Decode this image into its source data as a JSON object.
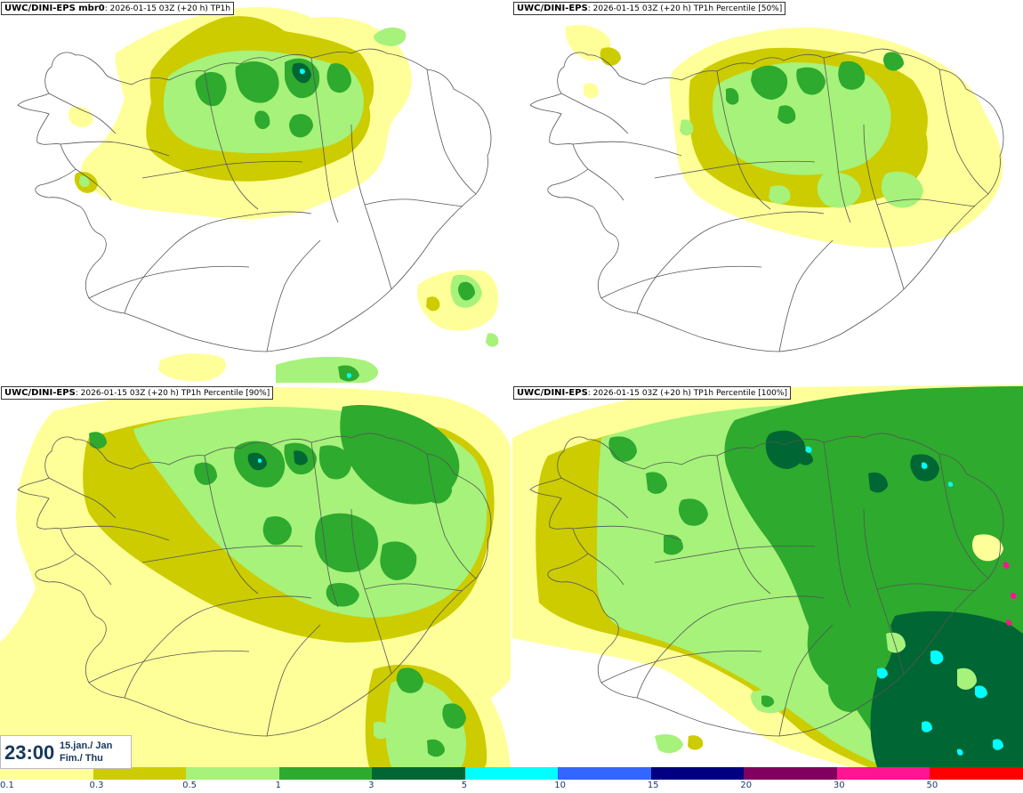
{
  "panels": [
    {
      "model": "UWC/DINI-EPS mbr0",
      "info": ": 2026-01-15 03Z (+20 h) TP1h"
    },
    {
      "model": "UWC/DINI-EPS",
      "info": ": 2026-01-15 03Z (+20 h) TP1h Percentile [50%]"
    },
    {
      "model": "UWC/DINI-EPS",
      "info": ": 2026-01-15 03Z (+20 h) TP1h Percentile [90%]"
    },
    {
      "model": "UWC/DINI-EPS",
      "info": ": 2026-01-15 03Z (+20 h) TP1h Percentile [100%]"
    }
  ],
  "time": {
    "hour": "23:00",
    "date_line1": "15.jan./ Jan",
    "date_line2": "Fim./ Thu"
  },
  "legend": {
    "ticks": [
      "0.1",
      "0.3",
      "0.5",
      "1",
      "3",
      "5",
      "10",
      "15",
      "20",
      "30",
      "50"
    ],
    "colors": [
      "#ffff99",
      "#cccc00",
      "#a6f27a",
      "#2eaa2e",
      "#006633",
      "#00ffff",
      "#3366ff",
      "#000080",
      "#800060",
      "#ff1493",
      "#ff0000"
    ]
  },
  "colors": {
    "very_light": "#ffff99",
    "light": "#cccc00",
    "light_green": "#a6f27a",
    "green": "#2eaa2e",
    "dark_green": "#006633",
    "cyan": "#00ffff",
    "coastline": "#555555"
  }
}
